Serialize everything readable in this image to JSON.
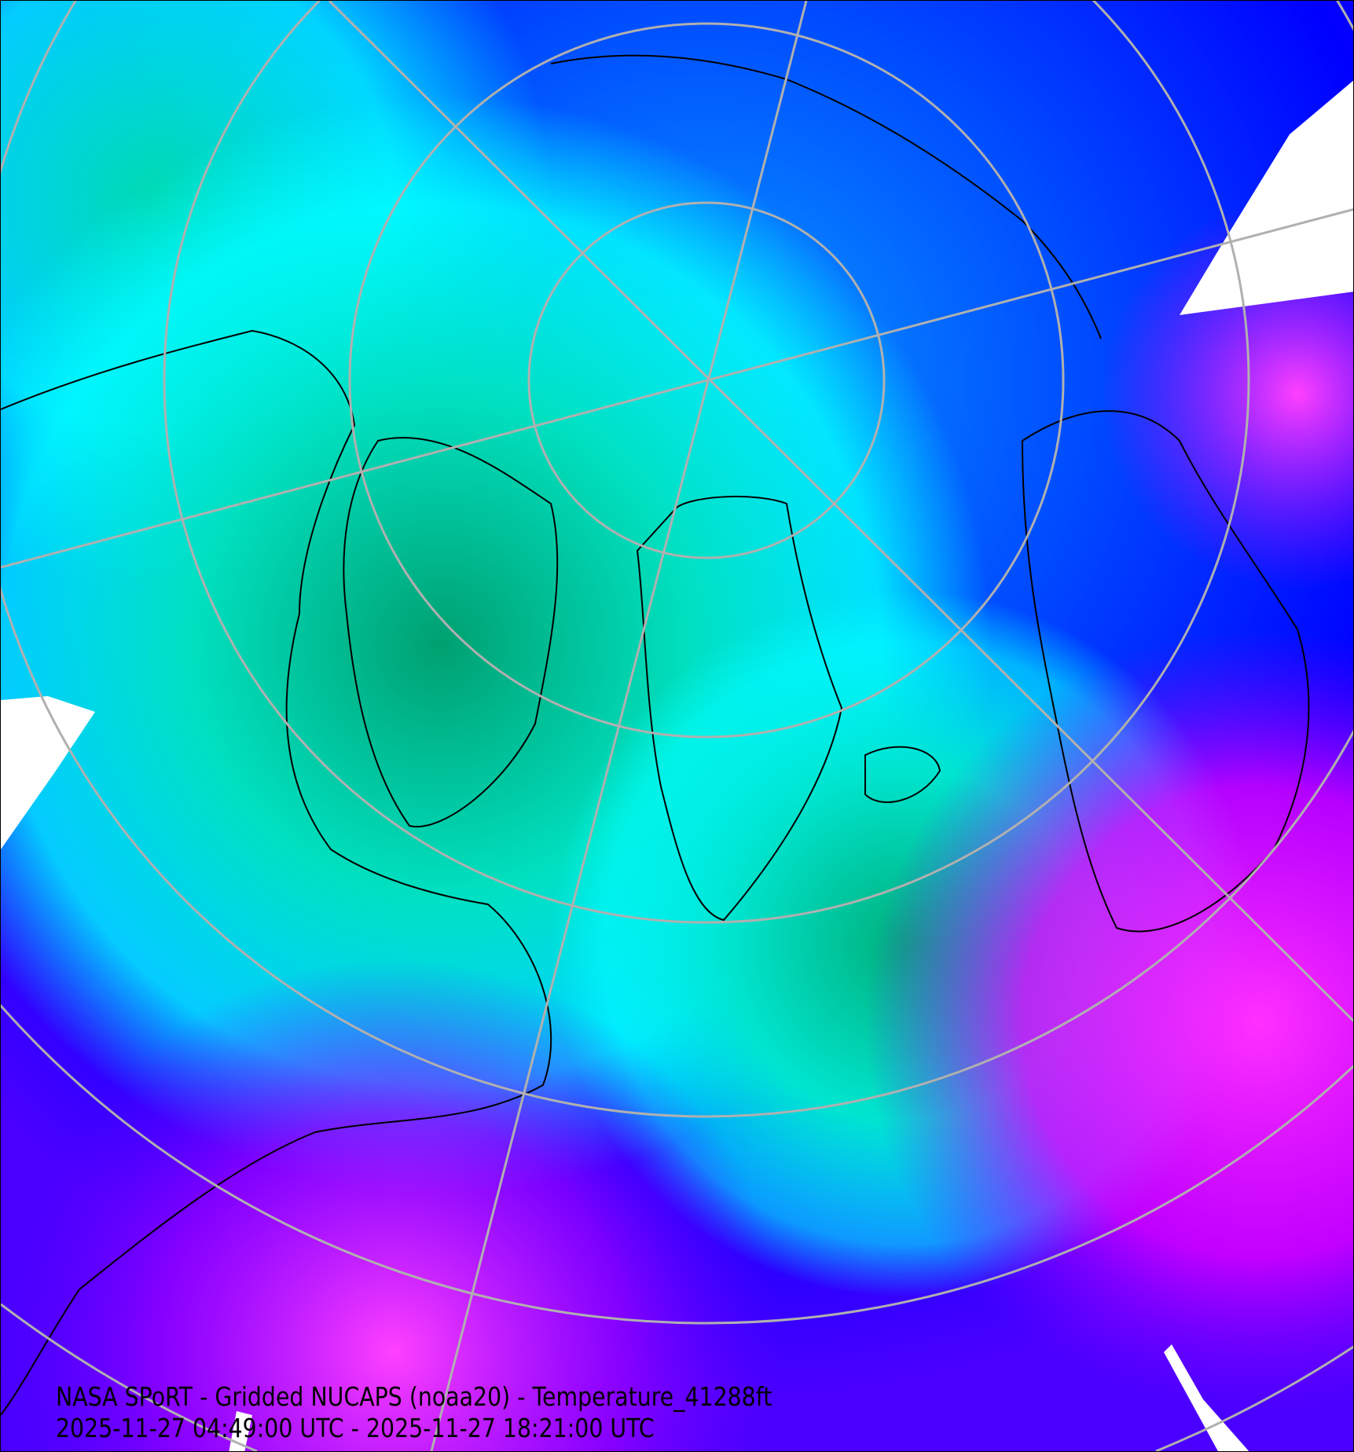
{
  "map": {
    "title": "NASA SPoRT - Gridded NUCAPS (noaa20) - Temperature_41288ft",
    "time_range": "2025-11-27 04:49:00 UTC - 2025-11-27 18:21:00 UTC",
    "projection": "north polar stereographic",
    "colors": {
      "cold": "#00a86b",
      "cool": "#00e5d0",
      "cyan": "#00ffff",
      "mid": "#0070ff",
      "blue": "#0000ff",
      "purple": "#7000ff",
      "warm": "#ff00ff",
      "grid": "#b0b0b0",
      "coastline": "#000000",
      "no_data": "#ffffff"
    }
  }
}
